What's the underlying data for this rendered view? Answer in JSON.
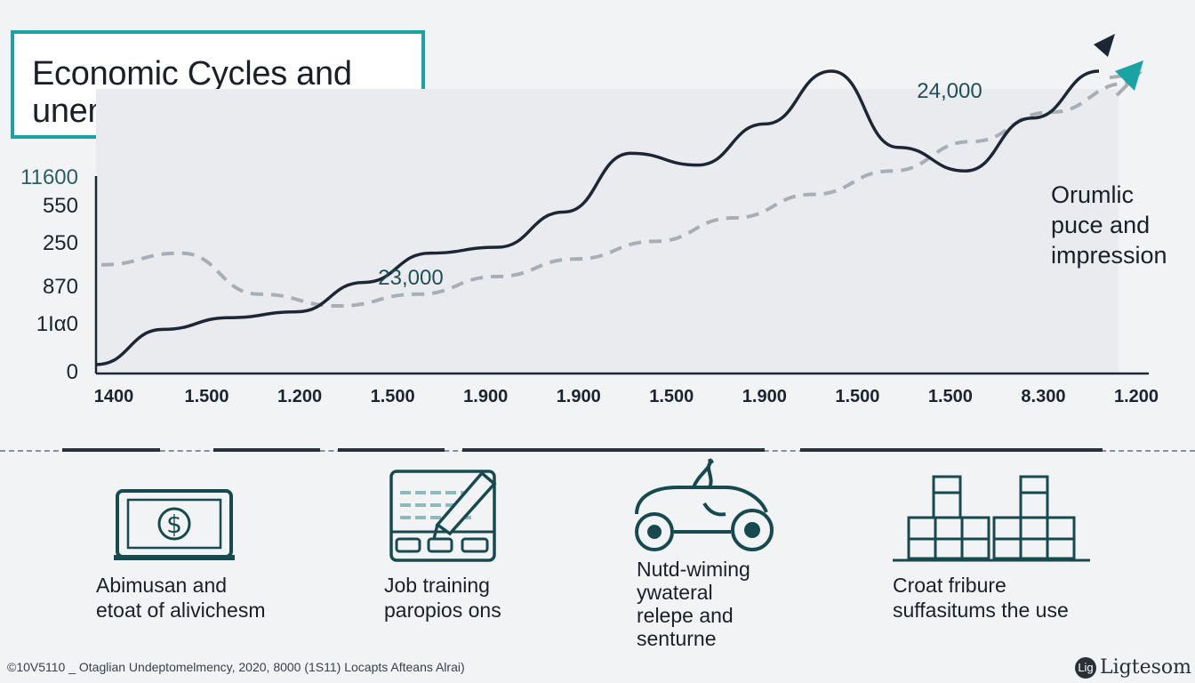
{
  "title": "Economic Cycles and unemployment rates",
  "chart_data": {
    "type": "line",
    "title": "Economic Cycles and unemployment rates",
    "y_tick_labels": [
      "11600",
      "550",
      "250",
      "870",
      "1Ια0",
      "0"
    ],
    "x_tick_labels": [
      "1400",
      "1.500",
      "1.200",
      "1.500",
      "1.900",
      "1.900",
      "1.500",
      "1.900",
      "1.500",
      "1.500",
      "8.300",
      "1.200"
    ],
    "annotations": [
      "23,000",
      "24,000"
    ],
    "side_label": [
      "Orumlic",
      "puce and",
      "impression"
    ],
    "series": [
      {
        "style": "solid",
        "color": "#1c2634",
        "values": [
          0.0,
          0.12,
          0.16,
          0.18,
          0.28,
          0.38,
          0.4,
          0.52,
          0.72,
          0.68,
          0.82,
          1.0,
          0.74,
          0.66,
          0.84,
          1.0
        ]
      },
      {
        "style": "dashed",
        "color": "#a8aeb6",
        "values": [
          0.34,
          0.38,
          0.24,
          0.2,
          0.24,
          0.3,
          0.36,
          0.42,
          0.5,
          0.58,
          0.66,
          0.76,
          0.86,
          0.96
        ]
      }
    ],
    "grid": false,
    "legend": "none",
    "colors": {
      "primary": "#1c2634",
      "accent": "#1aa3a3",
      "dashed": "#a8aeb6"
    }
  },
  "icons": [
    {
      "name": "money-screen-icon",
      "label": [
        "Abimusan and",
        "etoat of alivichesm"
      ]
    },
    {
      "name": "job-training-icon",
      "label": [
        "Job training",
        "paropios ons"
      ]
    },
    {
      "name": "vehicle-icon",
      "label": [
        "Nutd-wiming",
        "ywateral",
        "relepe and",
        "senturne"
      ]
    },
    {
      "name": "bar-blocks-icon",
      "label": [
        "Croat fribure",
        "suffasitums the use"
      ]
    }
  ],
  "footer": "©10V5110 _ Otaglian Undeptomelmency, 2020, 8000 (1S11) Locapts  Afteans Alrai)",
  "brand": "Ligtesom",
  "brand_mark": "Lig"
}
